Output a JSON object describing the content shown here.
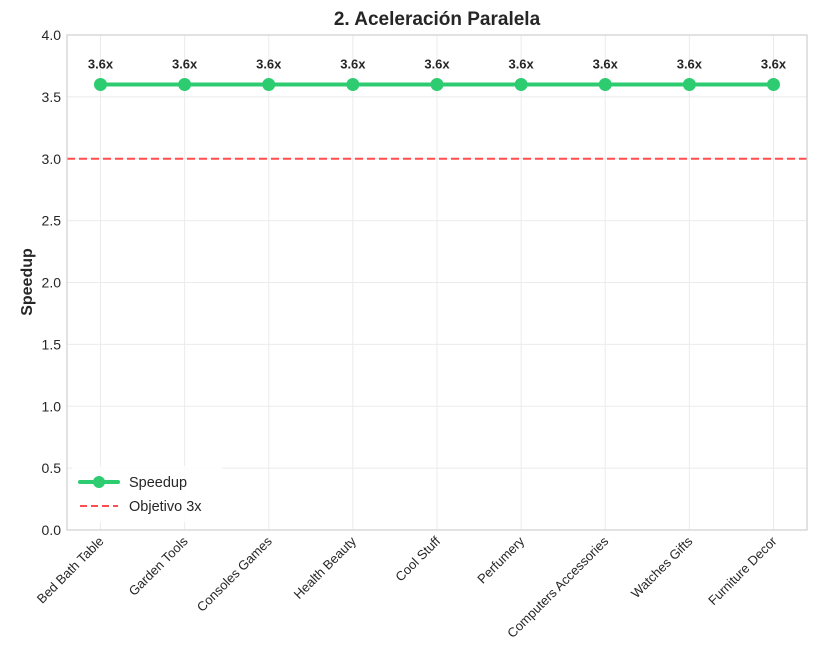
{
  "chart_data": {
    "type": "line",
    "title": "2. Aceleración Paralela",
    "xlabel": "",
    "ylabel": "Speedup",
    "categories": [
      "Bed Bath Table",
      "Garden Tools",
      "Consoles Games",
      "Health Beauty",
      "Cool Stuff",
      "Perfumery",
      "Computers Accessories",
      "Watches Gifts",
      "Furniture Decor"
    ],
    "series": [
      {
        "name": "Speedup",
        "values": [
          3.6,
          3.6,
          3.6,
          3.6,
          3.6,
          3.6,
          3.6,
          3.6,
          3.6
        ],
        "color": "#2ecc71",
        "data_labels": [
          "3.6x",
          "3.6x",
          "3.6x",
          "3.6x",
          "3.6x",
          "3.6x",
          "3.6x",
          "3.6x",
          "3.6x"
        ]
      }
    ],
    "reference_line": {
      "name": "Objetivo 3x",
      "value": 3.0,
      "color": "#ff4d4d",
      "style": "dashed"
    },
    "ylim": [
      0.0,
      4.0
    ],
    "yticks": [
      "0.0",
      "0.5",
      "1.0",
      "1.5",
      "2.0",
      "2.5",
      "3.0",
      "3.5",
      "4.0"
    ],
    "grid": true,
    "legend_position": "lower-left"
  }
}
